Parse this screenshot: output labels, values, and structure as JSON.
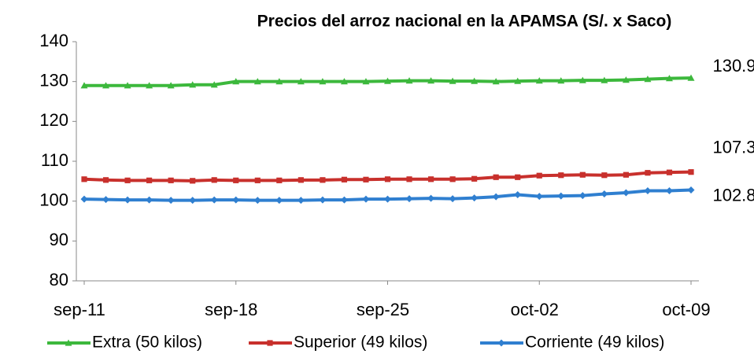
{
  "chart_data": {
    "type": "line",
    "title": "Precios del arroz nacional en la APAMSA (S/. x Saco)",
    "categories": [
      "sep-11",
      null,
      null,
      null,
      null,
      null,
      null,
      "sep-18",
      null,
      null,
      null,
      null,
      null,
      null,
      "sep-25",
      null,
      null,
      null,
      null,
      null,
      null,
      "oct-02",
      null,
      null,
      null,
      null,
      null,
      null,
      "oct-09"
    ],
    "series": [
      {
        "name": "Extra (50 kilos)",
        "color": "#3cb83c",
        "marker": "triangle",
        "values": [
          129,
          129,
          129,
          129,
          129,
          129.2,
          129.2,
          130,
          130,
          130,
          130,
          130,
          130,
          130,
          130.1,
          130.2,
          130.2,
          130.1,
          130.1,
          130,
          130.1,
          130.2,
          130.2,
          130.3,
          130.3,
          130.4,
          130.6,
          130.8,
          130.9
        ]
      },
      {
        "name": "Superior (49 kilos)",
        "color": "#c8302c",
        "marker": "square",
        "values": [
          105.5,
          105.3,
          105.2,
          105.2,
          105.2,
          105.1,
          105.3,
          105.2,
          105.2,
          105.2,
          105.3,
          105.3,
          105.4,
          105.4,
          105.5,
          105.5,
          105.5,
          105.5,
          105.6,
          106,
          106,
          106.4,
          106.5,
          106.6,
          106.5,
          106.6,
          107.1,
          107.2,
          107.3
        ]
      },
      {
        "name": "Corriente (49 kilos)",
        "color": "#2f7fd0",
        "marker": "diamond",
        "values": [
          100.5,
          100.4,
          100.3,
          100.3,
          100.2,
          100.2,
          100.3,
          100.3,
          100.2,
          100.2,
          100.2,
          100.3,
          100.3,
          100.5,
          100.5,
          100.6,
          100.7,
          100.6,
          100.8,
          101.1,
          101.6,
          101.2,
          101.3,
          101.4,
          101.8,
          102.1,
          102.6,
          102.6,
          102.8
        ]
      }
    ],
    "ylim": [
      80,
      140
    ],
    "yticks": [
      80,
      90,
      100,
      110,
      120,
      130,
      140
    ],
    "grid": false,
    "legend": "bottom"
  }
}
